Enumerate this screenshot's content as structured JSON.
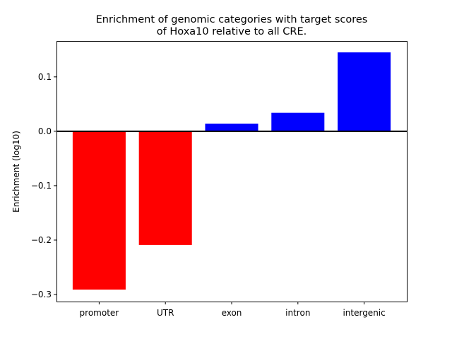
{
  "chart_data": {
    "type": "bar",
    "title": "Enrichment of genomic categories with target scores\nof Hoxa10 relative to all CRE.",
    "title_lines": [
      "Enrichment of genomic categories with target scores",
      "of Hoxa10 relative to all CRE."
    ],
    "xlabel": "",
    "ylabel": "Enrichment (log10)",
    "categories": [
      "promoter",
      "UTR",
      "exon",
      "intron",
      "intergenic"
    ],
    "values": [
      -0.291,
      -0.209,
      0.014,
      0.034,
      0.145
    ],
    "colors": [
      "#ff0000",
      "#ff0000",
      "#0000ff",
      "#0000ff",
      "#0000ff"
    ],
    "ylim": [
      -0.313,
      0.166
    ],
    "yticks": [
      -0.3,
      -0.2,
      -0.1,
      0.0,
      0.1
    ],
    "ytick_labels": [
      "−0.3",
      "−0.2",
      "−0.1",
      "0.0",
      "0.1"
    ],
    "grid": false,
    "zero_line": true
  }
}
